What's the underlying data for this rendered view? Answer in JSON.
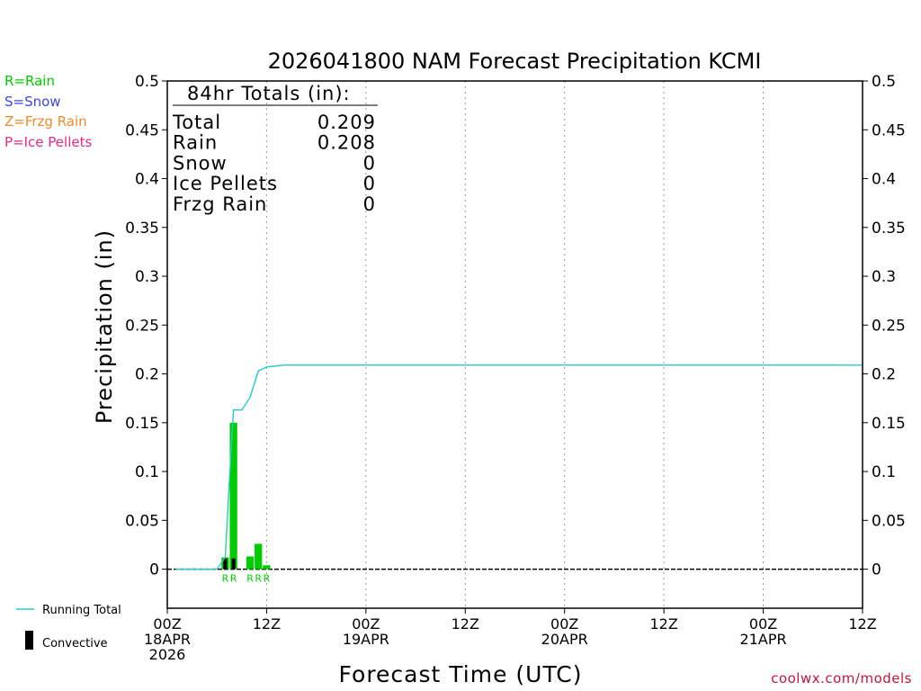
{
  "title": "2026041800 NAM Forecast Precipitation KCMI",
  "credit": "coolwx.com/models",
  "precip_type_legend": [
    {
      "label": "R=Rain",
      "color": "#00cc00"
    },
    {
      "label": "S=Snow",
      "color": "#3c46e6"
    },
    {
      "label": "Z=Frzg Rain",
      "color": "#ee8a2a"
    },
    {
      "label": "P=Ice Pellets",
      "color": "#e6288c"
    }
  ],
  "series_legend": {
    "running_total": {
      "label": "Running Total",
      "color": "#28c8c8"
    },
    "convective": {
      "label": "Convective",
      "color": "#000000"
    }
  },
  "totals_box": {
    "heading": "84hr Totals (in):",
    "rows": [
      {
        "label": "Total",
        "value": "0.209"
      },
      {
        "label": "Rain",
        "value": "0.208"
      },
      {
        "label": "Snow",
        "value": "0"
      },
      {
        "label": "Ice Pellets",
        "value": "0"
      },
      {
        "label": "Frzg Rain",
        "value": "0"
      }
    ]
  },
  "chart_data": {
    "type": "bar",
    "title": "2026041800 NAM Forecast Precipitation KCMI",
    "xlabel": "Forecast Time (UTC)",
    "ylabel": "Precipitation (in)",
    "xlim": [
      0,
      84
    ],
    "ylim": [
      -0.04,
      0.5
    ],
    "y_ticks": [
      0,
      0.05,
      0.1,
      0.15,
      0.2,
      0.25,
      0.3,
      0.35,
      0.4,
      0.45,
      0.5
    ],
    "y_tick_labels": [
      "0",
      "0.05",
      "0.1",
      "0.15",
      "0.2",
      "0.25",
      "0.3",
      "0.35",
      "0.4",
      "0.45",
      "0.5"
    ],
    "x_ticks": [
      {
        "hour": 0,
        "lines": [
          "00Z",
          "18APR",
          "2026"
        ]
      },
      {
        "hour": 12,
        "lines": [
          "12Z"
        ]
      },
      {
        "hour": 24,
        "lines": [
          "00Z",
          "19APR"
        ]
      },
      {
        "hour": 36,
        "lines": [
          "12Z"
        ]
      },
      {
        "hour": 48,
        "lines": [
          "00Z",
          "20APR"
        ]
      },
      {
        "hour": 60,
        "lines": [
          "12Z"
        ]
      },
      {
        "hour": 72,
        "lines": [
          "00Z",
          "21APR"
        ]
      },
      {
        "hour": 84,
        "lines": [
          "12Z"
        ]
      }
    ],
    "grid_x_hours": [
      12,
      24,
      36,
      48,
      60,
      72
    ],
    "precip_bars": [
      {
        "hour": 7,
        "value": 0.012,
        "type": "R"
      },
      {
        "hour": 8,
        "value": 0.15,
        "type": "R"
      },
      {
        "hour": 10,
        "value": 0.013,
        "type": "R"
      },
      {
        "hour": 11,
        "value": 0.026,
        "type": "R"
      },
      {
        "hour": 12,
        "value": 0.004,
        "type": "R"
      }
    ],
    "convective_bars": [
      {
        "hour": 7,
        "value": 0.011
      },
      {
        "hour": 8,
        "value": 0.011
      }
    ],
    "type_labels": [
      {
        "hour": 7,
        "text": "R"
      },
      {
        "hour": 8,
        "text": "R"
      },
      {
        "hour": 10,
        "text": "R"
      },
      {
        "hour": 11,
        "text": "R"
      },
      {
        "hour": 12,
        "text": "R"
      }
    ],
    "running_total": {
      "x": [
        1,
        2,
        3,
        4,
        5,
        6,
        7,
        7.5,
        8,
        9,
        10,
        11,
        12,
        13,
        14,
        15,
        84
      ],
      "y": [
        0,
        0,
        0,
        0,
        0,
        0,
        0.012,
        0.09,
        0.163,
        0.163,
        0.176,
        0.203,
        0.207,
        0.208,
        0.209,
        0.209,
        0.209
      ]
    }
  }
}
